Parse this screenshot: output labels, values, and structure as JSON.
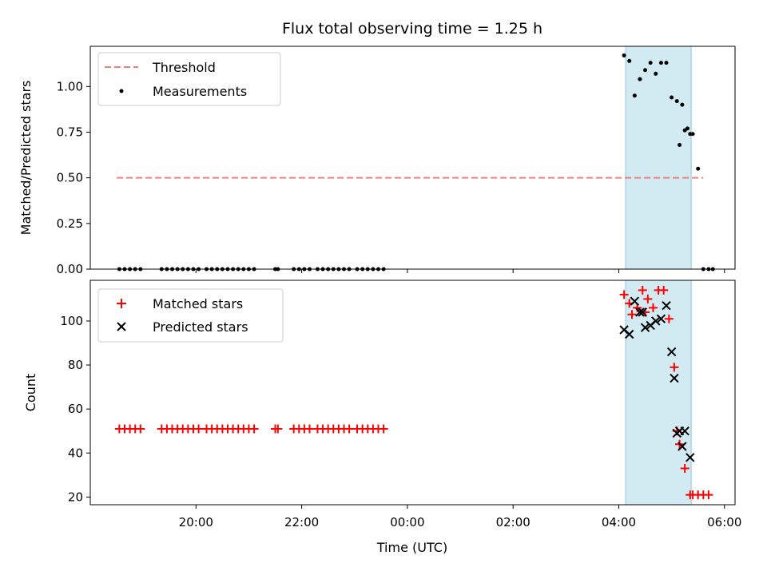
{
  "chart_data": [
    {
      "type": "scatter",
      "title": "Flux total observing time = 1.25 h",
      "ylabel": "Matched/Predicted stars",
      "xlabel": "",
      "x_unit": "hours of day (UTC), values past 24 are next day",
      "xlim": [
        18.0,
        30.2
      ],
      "ylim": [
        0.0,
        1.22
      ],
      "yticks": [
        0.0,
        0.25,
        0.5,
        0.75,
        1.0
      ],
      "ytick_labels": [
        "0.00",
        "0.25",
        "0.50",
        "0.75",
        "1.00"
      ],
      "legend": {
        "position": "top-left",
        "entries": [
          "Threshold",
          "Measurements"
        ]
      },
      "grid": false,
      "highlight_span": {
        "x": [
          28.13,
          29.37
        ],
        "color": "#add8e6"
      },
      "threshold": {
        "name": "Threshold",
        "y": 0.5,
        "x": [
          18.5,
          29.6
        ],
        "color": "#f08080"
      },
      "series": [
        {
          "name": "Measurements",
          "color": "#000000",
          "x": [
            18.55,
            18.65,
            18.75,
            18.85,
            18.95,
            19.35,
            19.45,
            19.55,
            19.65,
            19.75,
            19.85,
            19.95,
            20.05,
            20.2,
            20.3,
            20.4,
            20.5,
            20.6,
            20.7,
            20.8,
            20.9,
            21.0,
            21.1,
            21.5,
            21.55,
            21.85,
            21.95,
            22.05,
            22.15,
            22.3,
            22.4,
            22.5,
            22.6,
            22.7,
            22.8,
            22.9,
            23.05,
            23.15,
            23.25,
            23.35,
            23.45,
            23.55,
            28.1,
            28.2,
            28.3,
            28.4,
            28.5,
            28.6,
            28.7,
            28.8,
            28.9,
            29.0,
            29.1,
            29.2,
            29.3,
            29.4,
            29.5,
            29.6,
            29.7,
            29.78,
            28.4,
            29.15,
            29.25,
            29.35
          ],
          "y": [
            0,
            0,
            0,
            0,
            0,
            0,
            0,
            0,
            0,
            0,
            0,
            0,
            0,
            0,
            0,
            0,
            0,
            0,
            0,
            0,
            0,
            0,
            0,
            0,
            0,
            0,
            0,
            0,
            0,
            0,
            0,
            0,
            0,
            0,
            0,
            0,
            0,
            0,
            0,
            0,
            0,
            0,
            1.17,
            1.14,
            0.95,
            1.04,
            1.09,
            1.13,
            1.07,
            1.13,
            1.13,
            0.94,
            0.92,
            0.9,
            0.77,
            0.74,
            0.55,
            0,
            0,
            0,
            1.04,
            0.68,
            0.76,
            0.74
          ]
        }
      ]
    },
    {
      "type": "scatter",
      "title": "",
      "ylabel": "Count",
      "xlabel": "Time (UTC)",
      "x_unit": "hours of day (UTC), values past 24 are next day",
      "xlim": [
        18.0,
        30.2
      ],
      "ylim": [
        16.5,
        118.5
      ],
      "yticks": [
        20,
        40,
        60,
        80,
        100
      ],
      "ytick_labels": [
        "20",
        "40",
        "60",
        "80",
        "100"
      ],
      "xticks": [
        20,
        22,
        24,
        26,
        28,
        30
      ],
      "xtick_labels": [
        "20:00",
        "22:00",
        "00:00",
        "02:00",
        "04:00",
        "06:00"
      ],
      "legend": {
        "position": "top-left",
        "entries": [
          "Matched stars",
          "Predicted stars"
        ]
      },
      "grid": false,
      "highlight_span": {
        "x": [
          28.13,
          29.37
        ],
        "color": "#add8e6"
      },
      "series": [
        {
          "name": "Matched stars",
          "marker": "plus",
          "color": "#ff0000",
          "x": [
            18.55,
            18.65,
            18.75,
            18.85,
            18.95,
            19.35,
            19.45,
            19.55,
            19.65,
            19.75,
            19.85,
            19.95,
            20.05,
            20.2,
            20.3,
            20.4,
            20.5,
            20.6,
            20.7,
            20.8,
            20.9,
            21.0,
            21.1,
            21.5,
            21.55,
            21.85,
            21.95,
            22.05,
            22.15,
            22.3,
            22.4,
            22.5,
            22.6,
            22.7,
            22.8,
            22.9,
            23.05,
            23.15,
            23.25,
            23.35,
            23.45,
            23.55,
            28.1,
            28.2,
            28.25,
            28.35,
            28.45,
            28.55,
            28.65,
            28.75,
            28.85,
            28.95,
            29.05,
            29.1,
            29.15,
            29.25,
            29.35,
            29.4,
            29.5,
            29.6,
            29.7,
            28.5
          ],
          "y": [
            51,
            51,
            51,
            51,
            51,
            51,
            51,
            51,
            51,
            51,
            51,
            51,
            51,
            51,
            51,
            51,
            51,
            51,
            51,
            51,
            51,
            51,
            51,
            51,
            51,
            51,
            51,
            51,
            51,
            51,
            51,
            51,
            51,
            51,
            51,
            51,
            51,
            51,
            51,
            51,
            51,
            51,
            112,
            108,
            103,
            106,
            114,
            110,
            106,
            114,
            114,
            101,
            79,
            50,
            44,
            33,
            21,
            21,
            21,
            21,
            21,
            104
          ]
        },
        {
          "name": "Predicted stars",
          "marker": "x",
          "color": "#000000",
          "x": [
            28.1,
            28.2,
            28.3,
            28.4,
            28.45,
            28.5,
            28.6,
            28.7,
            28.8,
            28.9,
            29.0,
            29.05,
            29.1,
            29.15,
            29.2,
            29.25,
            29.35
          ],
          "y": [
            96,
            94,
            109,
            104,
            104,
            97,
            98,
            100,
            101,
            107,
            86,
            74,
            49,
            50,
            43,
            50,
            38
          ]
        }
      ]
    }
  ]
}
